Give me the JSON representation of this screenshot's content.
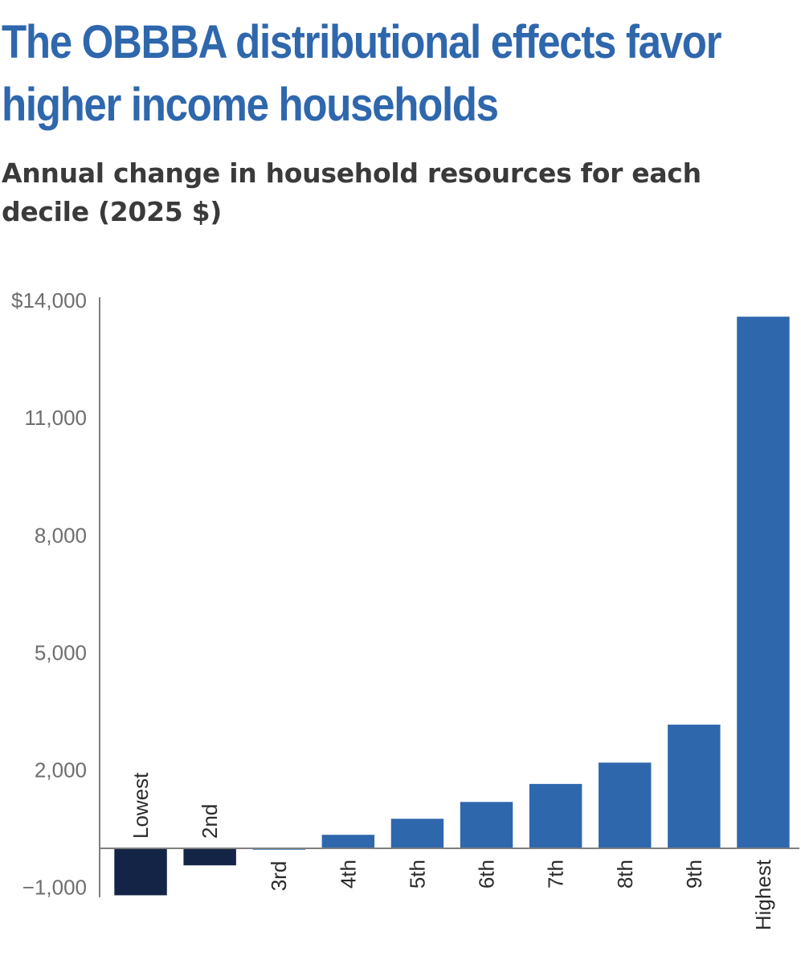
{
  "chart_data": {
    "type": "bar",
    "title": "The OBBBA distributional effects favor higher income households",
    "subtitle": "Annual change in household resources for each decile (2025 $)",
    "categories": [
      "Lowest",
      "2nd",
      "3rd",
      "4th",
      "5th",
      "6th",
      "7th",
      "8th",
      "9th",
      "Highest"
    ],
    "values": [
      -1200,
      -435,
      -35,
      345,
      755,
      1185,
      1645,
      2190,
      3160,
      13585
    ],
    "y_ticks": [
      {
        "value": 14000,
        "label": "$14,000"
      },
      {
        "value": 11000,
        "label": "11,000"
      },
      {
        "value": 8000,
        "label": "8,000"
      },
      {
        "value": 5000,
        "label": "5,000"
      },
      {
        "value": 2000,
        "label": "2,000"
      },
      {
        "value": -1000,
        "label": "−1,000"
      }
    ],
    "ylim": [
      -1300,
      14000
    ],
    "grid": false,
    "legend": "none",
    "colors": {
      "negative": "#142447",
      "positive": "#2f67ad",
      "axis": "#7f7f7f"
    }
  }
}
